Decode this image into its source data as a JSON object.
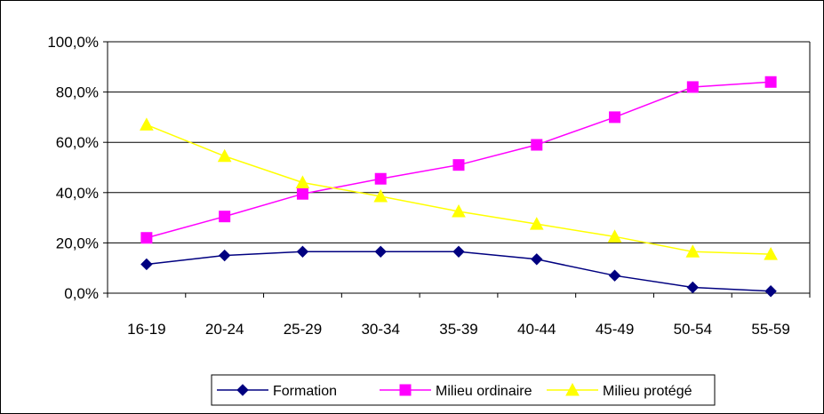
{
  "chart_data": {
    "type": "line",
    "title": "",
    "xlabel": "",
    "ylabel": "",
    "categories": [
      "16-19",
      "20-24",
      "25-29",
      "30-34",
      "35-39",
      "40-44",
      "45-49",
      "50-54",
      "55-59"
    ],
    "ylim": [
      0,
      100
    ],
    "yticks": [
      0,
      20,
      40,
      60,
      80,
      100
    ],
    "ytick_labels": [
      "0,0%",
      "20,0%",
      "40,0%",
      "60,0%",
      "80,0%",
      "100,0%"
    ],
    "grid": "horizontal",
    "legend_position": "bottom",
    "series": [
      {
        "name": "Formation",
        "color": "#000080",
        "marker": "diamond",
        "values": [
          11.5,
          15.0,
          16.5,
          16.5,
          16.5,
          13.5,
          7.0,
          2.3,
          0.8
        ]
      },
      {
        "name": "Milieu ordinaire",
        "color": "#FF00FF",
        "marker": "square",
        "values": [
          22.0,
          30.5,
          39.5,
          45.5,
          51.0,
          59.0,
          70.0,
          82.0,
          84.0
        ]
      },
      {
        "name": "Milieu protégé",
        "color": "#FFFF00",
        "marker": "triangle",
        "values": [
          67.0,
          54.5,
          44.0,
          38.5,
          32.5,
          27.5,
          22.5,
          16.5,
          15.5
        ]
      }
    ]
  }
}
